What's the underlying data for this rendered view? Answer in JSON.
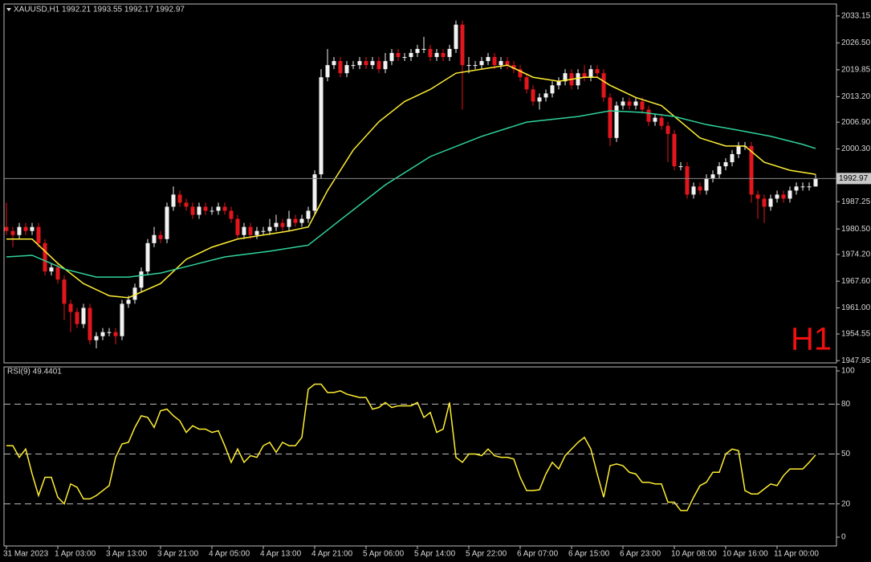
{
  "chart_data": [
    {
      "type": "candlestick",
      "title": "XAUUSD,H1  1992.21 1993.55 1992.17 1992.97",
      "watermark": "H1",
      "x_labels": [
        "31 Mar 2023",
        "1 Apr 03:00",
        "3 Apr 13:00",
        "3 Apr 21:00",
        "4 Apr 05:00",
        "4 Apr 13:00",
        "4 Apr 21:00",
        "5 Apr 06:00",
        "5 Apr 14:00",
        "5 Apr 22:00",
        "6 Apr 07:00",
        "6 Apr 15:00",
        "6 Apr 23:00",
        "10 Apr 08:00",
        "10 Apr 16:00",
        "11 Apr 00:00"
      ],
      "open": [
        1981,
        1980,
        1979,
        1981,
        1980,
        1981,
        1977,
        1970,
        1971,
        1968,
        1962,
        1960,
        1957,
        1961,
        1953,
        1954,
        1955,
        1955,
        1954,
        1962,
        1963,
        1966,
        1970,
        1977,
        1979,
        1978,
        1986,
        1989,
        1987,
        1986,
        1984,
        1986,
        1985,
        1985,
        1986,
        1985,
        1983,
        1979,
        1981,
        1979,
        1980,
        1980,
        1981,
        1982,
        1981,
        1983,
        1982,
        1983,
        1985,
        1994,
        2018,
        2021,
        2022,
        2019,
        2021,
        2021,
        2022,
        2021,
        2022,
        2020,
        2022,
        2024,
        2023,
        2023,
        2024,
        2025,
        2025,
        2023,
        2024,
        2023,
        2025,
        2031,
        2021,
        2021,
        2021,
        2022,
        2023,
        2021,
        2022,
        2021,
        2020,
        2018,
        2015,
        2012,
        2013,
        2014,
        2016,
        2017,
        2019,
        2016,
        2019,
        2018,
        2020,
        2019,
        2013,
        2003,
        2011,
        2012,
        2011,
        2012,
        2010,
        2007,
        2008,
        2006,
        2004,
        1996,
        1996,
        1989,
        1991,
        1990,
        1993,
        1994,
        1996,
        1997,
        1999,
        2001,
        2001,
        1989,
        1988,
        1986,
        1988,
        1989,
        1988,
        1990,
        1991,
        1991,
        1991
      ],
      "high": [
        1987,
        1981,
        1982,
        1982,
        1982,
        1982,
        1978,
        1972,
        1972,
        1969,
        1963,
        1961,
        1962,
        1962,
        1955,
        1956,
        1956,
        1956,
        1963,
        1964,
        1967,
        1971,
        1978,
        1981,
        1980,
        1987,
        1991,
        1990,
        1988,
        1987,
        1987,
        1987,
        1986,
        1987,
        1987,
        1986,
        1984,
        1982,
        1982,
        1981,
        1981,
        1983,
        1984,
        1983,
        1985,
        1984,
        1984,
        1986,
        1995,
        2020,
        2025,
        2023,
        2023,
        2022,
        2022,
        2023,
        2023,
        2023,
        2023,
        2024,
        2025,
        2025,
        2024,
        2025,
        2026,
        2028,
        2026,
        2025,
        2025,
        2026,
        2032,
        2032,
        2023,
        2022,
        2023,
        2024,
        2024,
        2023,
        2023,
        2022,
        2021,
        2019,
        2016,
        2014,
        2015,
        2017,
        2018,
        2020,
        2020,
        2020,
        2021,
        2021,
        2021,
        2020,
        2014,
        2012,
        2013,
        2013,
        2013,
        2013,
        2011,
        2009,
        2009,
        2007,
        2005,
        1997,
        1997,
        1992,
        1992,
        1994,
        1995,
        1997,
        1998,
        2000,
        2002,
        2002,
        2002,
        1990,
        1989,
        1989,
        1990,
        1990,
        1991,
        1992,
        1992,
        1992,
        1994
      ],
      "low": [
        1979,
        1976,
        1978,
        1979,
        1979,
        1976,
        1969,
        1969,
        1967,
        1958,
        1955,
        1956,
        1956,
        1952,
        1951,
        1953,
        1954,
        1952,
        1953,
        1961,
        1962,
        1965,
        1969,
        1976,
        1977,
        1977,
        1985,
        1986,
        1985,
        1983,
        1983,
        1984,
        1984,
        1984,
        1984,
        1982,
        1978,
        1978,
        1978,
        1978,
        1979,
        1979,
        1980,
        1980,
        1980,
        1981,
        1981,
        1982,
        1984,
        1993,
        2017,
        2020,
        2018,
        2018,
        2020,
        2020,
        2020,
        2020,
        2019,
        2019,
        2021,
        2022,
        2022,
        2022,
        2023,
        2024,
        2022,
        2022,
        2022,
        2022,
        2024,
        2010,
        2019,
        2020,
        2020,
        2021,
        2020,
        2020,
        2020,
        2019,
        2017,
        2014,
        2011,
        2010,
        2012,
        2013,
        2015,
        2016,
        2015,
        2015,
        2017,
        2017,
        2018,
        2012,
        2001,
        2002,
        2010,
        2010,
        2010,
        2009,
        2006,
        2006,
        2005,
        1997,
        1995,
        1995,
        1988,
        1988,
        1989,
        1989,
        1992,
        1993,
        1995,
        1996,
        1998,
        2000,
        1987,
        1983,
        1982,
        1985,
        1987,
        1987,
        1987,
        1989,
        1990,
        1990,
        1991
      ],
      "close": [
        1980,
        1979,
        1981,
        1980,
        1981,
        1977,
        1970,
        1971,
        1968,
        1962,
        1960,
        1957,
        1961,
        1953,
        1954,
        1955,
        1955,
        1954,
        1962,
        1963,
        1966,
        1970,
        1977,
        1979,
        1978,
        1986,
        1989,
        1987,
        1986,
        1984,
        1986,
        1985,
        1985,
        1986,
        1985,
        1983,
        1979,
        1981,
        1979,
        1980,
        1980,
        1981,
        1982,
        1981,
        1983,
        1982,
        1983,
        1985,
        1994,
        2018,
        2021,
        2022,
        2019,
        2021,
        2021,
        2022,
        2021,
        2022,
        2020,
        2022,
        2024,
        2023,
        2023,
        2024,
        2025,
        2025,
        2023,
        2024,
        2023,
        2025,
        2031,
        2021,
        2021,
        2021,
        2022,
        2023,
        2021,
        2022,
        2021,
        2020,
        2018,
        2015,
        2012,
        2013,
        2014,
        2016,
        2017,
        2019,
        2016,
        2019,
        2018,
        2020,
        2019,
        2013,
        2003,
        2011,
        2012,
        2011,
        2012,
        2010,
        2007,
        2008,
        2006,
        2004,
        1996,
        1996,
        1989,
        1991,
        1990,
        1993,
        1994,
        1996,
        1997,
        1999,
        2001,
        2001,
        1989,
        1988,
        1986,
        1988,
        1989,
        1988,
        1990,
        1991,
        1991,
        1991,
        1993
      ],
      "up_color": "#f2f2f2",
      "down_color": "#e3161d",
      "series": [
        {
          "color": "#ffee33",
          "x": [
            0,
            4,
            8,
            12,
            16,
            19,
            24,
            28,
            32,
            36,
            40,
            44,
            47,
            50,
            54,
            58,
            62,
            66,
            70,
            74,
            78,
            82,
            86,
            90,
            92,
            94,
            98,
            102,
            105,
            108,
            112,
            115,
            118,
            122,
            126
          ],
          "values": [
            1978,
            1978,
            1972,
            1967,
            1964,
            1963.5,
            1967,
            1973,
            1976,
            1978,
            1979,
            1980,
            1981,
            1990,
            2000,
            2007,
            2012,
            2015,
            2019,
            2020,
            2021,
            2018,
            2017,
            2018,
            2018,
            2016,
            2013,
            2011,
            2007,
            2003,
            2001,
            2001,
            1997,
            1995,
            1994
          ]
        },
        {
          "color": "#2fd49a",
          "x": [
            0,
            4,
            9,
            14,
            19,
            24,
            29,
            34,
            41,
            47,
            51,
            59,
            66,
            74,
            81,
            89,
            94,
            99,
            104,
            109,
            114,
            119,
            124,
            126
          ],
          "values": [
            1973.6,
            1974,
            1970.6,
            1968.6,
            1968.6,
            1969.6,
            1971.6,
            1973.6,
            1975,
            1976.5,
            1981.5,
            1991.4,
            1998.4,
            2003.4,
            2006.9,
            2008.3,
            2009.7,
            2009.3,
            2008.3,
            2006.3,
            2004.9,
            2003.4,
            2001.4,
            2000.4
          ]
        }
      ],
      "last_price": {
        "value": 1992.97,
        "label": "1992.97"
      },
      "ylim": [
        1947.4,
        2036.1
      ],
      "yticks": [
        {
          "value": 2033.15,
          "label": "2033.15"
        },
        {
          "value": 2026.5,
          "label": "2026.50"
        },
        {
          "value": 2019.85,
          "label": "2019.85"
        },
        {
          "value": 2013.2,
          "label": "2013.20"
        },
        {
          "value": 2006.9,
          "label": "2006.90"
        },
        {
          "value": 2000.3,
          "label": "2000.30"
        },
        {
          "value": 1987.25,
          "label": "1987.25"
        },
        {
          "value": 1980.5,
          "label": "1980.50"
        },
        {
          "value": 1974.2,
          "label": "1974.20"
        },
        {
          "value": 1967.6,
          "label": "1967.60"
        },
        {
          "value": 1961,
          "label": "1961.00"
        },
        {
          "value": 1954.55,
          "label": "1954.55"
        },
        {
          "value": 1947.95,
          "label": "1947.95"
        }
      ]
    },
    {
      "type": "line",
      "title": "RSI(9) 49.4401",
      "color": "#ffee33",
      "values": [
        55,
        55,
        48,
        53,
        38,
        25,
        36,
        36,
        24,
        20,
        32,
        30,
        23,
        23,
        25,
        28,
        31,
        48,
        56,
        57,
        66,
        73,
        72,
        66,
        76,
        77,
        73,
        70,
        63,
        67,
        65,
        65,
        63,
        64,
        55,
        45,
        53,
        45,
        49,
        48,
        55,
        57,
        51,
        57,
        55,
        55,
        60,
        89,
        92,
        92,
        87,
        87,
        88,
        86,
        85,
        84,
        84,
        77,
        78,
        81,
        78,
        79,
        79,
        79,
        81,
        72,
        75,
        63,
        65,
        81,
        48,
        45,
        50,
        50,
        49,
        53,
        49,
        48,
        48,
        47,
        36,
        28,
        28,
        28.5,
        38,
        45,
        41,
        49,
        53,
        57,
        60,
        53,
        38,
        24,
        43,
        44,
        43,
        39,
        38,
        33,
        33,
        32,
        32,
        21,
        21,
        16,
        16,
        24,
        31,
        33,
        39,
        39,
        50,
        53,
        52,
        28,
        26,
        26,
        29,
        32,
        31,
        37,
        41,
        41,
        41,
        45,
        49.44
      ],
      "levels": [
        20,
        50,
        80
      ],
      "ylim": [
        -5.3,
        102.4
      ],
      "yticks": [
        0,
        20,
        50,
        80,
        100
      ]
    }
  ]
}
